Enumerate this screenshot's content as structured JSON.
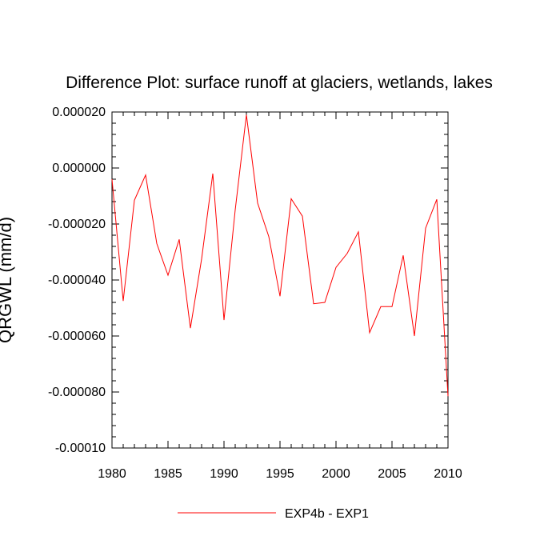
{
  "chart_data": {
    "type": "line",
    "title": "Difference Plot: surface runoff at glaciers, wetlands, lakes",
    "xlabel": "",
    "ylabel": "QRGWL  (mm/d)",
    "xlim": [
      1980,
      2010
    ],
    "ylim": [
      -0.0001,
      2e-05
    ],
    "x_ticks": [
      1980,
      1985,
      1990,
      1995,
      2000,
      2005,
      2010
    ],
    "x_tick_labels": [
      "1980",
      "1985",
      "1990",
      "1995",
      "2000",
      "2005",
      "2010"
    ],
    "y_ticks": [
      2e-05,
      0.0,
      -2e-05,
      -4e-05,
      -6e-05,
      -8e-05,
      -0.0001
    ],
    "y_tick_labels": [
      "0.000020",
      "0.000000",
      "-0.000020",
      "-0.000040",
      "-0.000060",
      "-0.000080",
      "-0.00010"
    ],
    "grid": false,
    "legend_position": "bottom-center",
    "series": [
      {
        "name": "EXP4b - EXP1",
        "color": "#ff0000",
        "x": [
          1980,
          1981,
          1982,
          1983,
          1984,
          1985,
          1986,
          1987,
          1988,
          1989,
          1990,
          1991,
          1992,
          1993,
          1994,
          1995,
          1996,
          1997,
          1998,
          1999,
          2000,
          2001,
          2002,
          2003,
          2004,
          2005,
          2006,
          2007,
          2008,
          2009,
          2010
        ],
        "y": [
          -4e-06,
          -4.75e-05,
          -1.15e-05,
          -2.5e-06,
          -2.7e-05,
          -3.83e-05,
          -2.55e-05,
          -5.72e-05,
          -3.25e-05,
          -2e-06,
          -5.43e-05,
          -1.5e-05,
          1.9e-05,
          -1.25e-05,
          -2.45e-05,
          -4.58e-05,
          -1.1e-05,
          -1.72e-05,
          -4.85e-05,
          -4.8e-05,
          -3.55e-05,
          -3.05e-05,
          -2.28e-05,
          -5.88e-05,
          -4.95e-05,
          -4.95e-05,
          -3.12e-05,
          -6e-05,
          -2.15e-05,
          -1.12e-05,
          -8.15e-05
        ]
      }
    ]
  }
}
